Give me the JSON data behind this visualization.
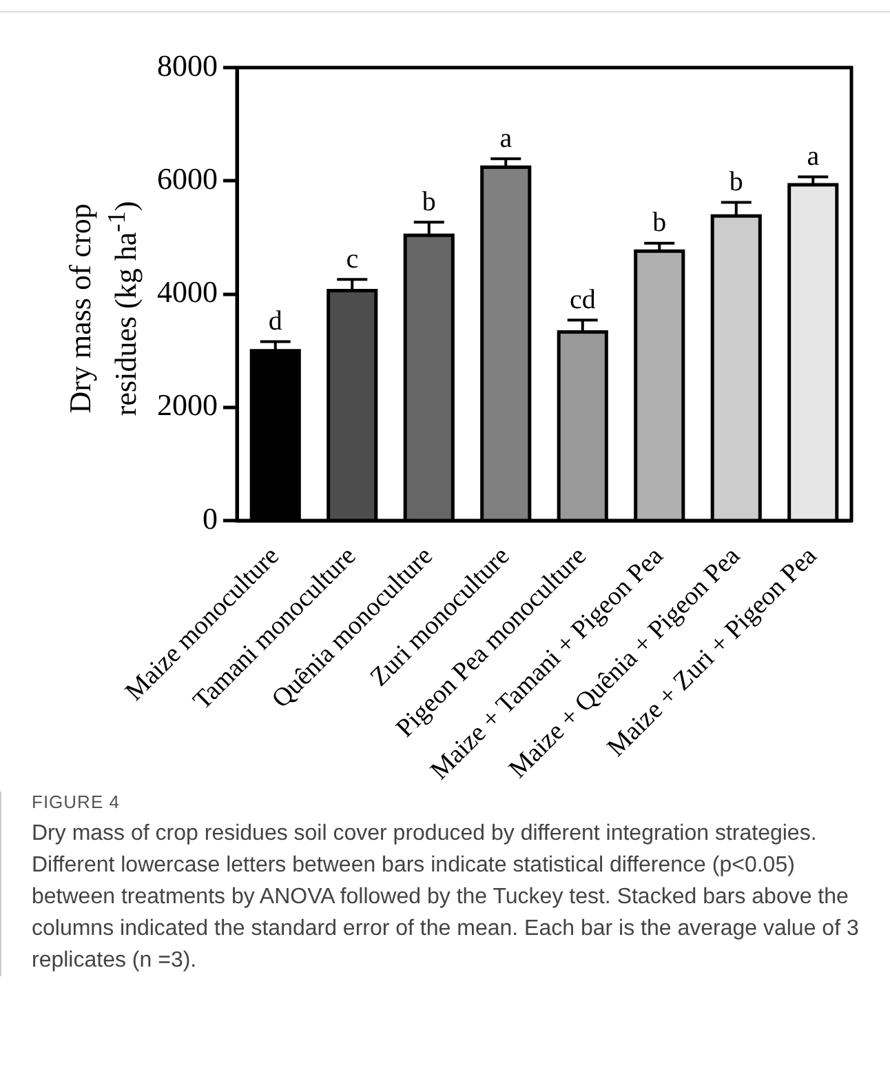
{
  "chart_data": {
    "type": "bar",
    "ylabel": "Dry mass of crop residues (kg ha$^{-1}$)",
    "categories": [
      "Maize monoculture",
      "Tamani monoculture",
      "Quênia monoculture",
      "Zuri monoculture",
      "Pigeon Pea monoculture",
      "Maize + Tamani + Pigeon Pea",
      "Maize + Quênia + Pigeon Pea",
      "Maize + Zuri + Pigeon Pea"
    ],
    "values": [
      3000,
      4060,
      5040,
      6240,
      3330,
      4760,
      5380,
      5930
    ],
    "errors": [
      160,
      200,
      230,
      150,
      210,
      140,
      240,
      140
    ],
    "colors": [
      "#000000",
      "#4d4d4d",
      "#666666",
      "#808080",
      "#999999",
      "#b0b0b0",
      "#cccccc",
      "#e6e6e6"
    ],
    "ylim": [
      0,
      8000
    ],
    "yticks": [
      0,
      2000,
      4000,
      6000,
      8000
    ],
    "grid": false,
    "legend": false,
    "annotations": [
      {
        "text": "d",
        "x": "Maize monoculture",
        "y": 3160
      },
      {
        "text": "c",
        "x": "Tamani monoculture",
        "y": 4260
      },
      {
        "text": "b",
        "x": "Quênia monoculture",
        "y": 5270
      },
      {
        "text": "a",
        "x": "Zuri monoculture",
        "y": 6390
      },
      {
        "text": "cd",
        "x": "Pigeon Pea monoculture",
        "y": 3540
      },
      {
        "text": "b",
        "x": "Maize + Tamani + Pigeon Pea",
        "y": 4900
      },
      {
        "text": "b",
        "x": "Maize + Quênia + Pigeon Pea",
        "y": 5620
      },
      {
        "text": "a",
        "x": "Maize + Zuri + Pigeon Pea",
        "y": 6070
      },
      "FIGURE 4",
      "Dry mass of crop residues soil cover produced by different integration strategies. Different lowercase letters between bars indicate statistical difference (p<0.05) between treatments by ANOVA followed by the Tuckey test. Stacked bars above the columns indicated the standard error of the mean. Each bar is the average value of 3 replicates (n =3)."
    ]
  }
}
